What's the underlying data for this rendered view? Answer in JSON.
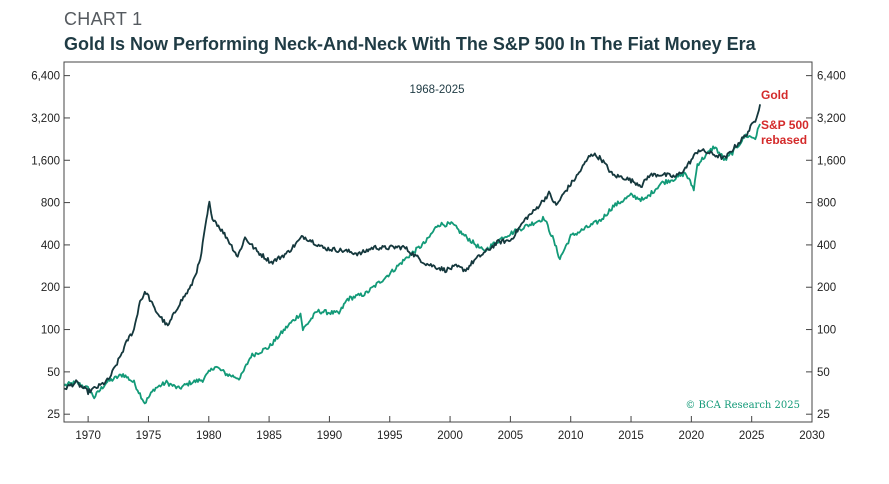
{
  "header": {
    "label": "CHART 1",
    "title": "Gold Is Now Performing Neck-And-Neck With The S&P 500 In The Fiat Money Era"
  },
  "chart_data": {
    "type": "line",
    "scale": "log2",
    "date_range": "1968-2025",
    "copyright": "© BCA Research 2025",
    "xlim": [
      1968,
      2030
    ],
    "ylim": [
      22,
      8000
    ],
    "x_ticks": [
      1970,
      1975,
      1980,
      1985,
      1990,
      1995,
      2000,
      2005,
      2010,
      2015,
      2020,
      2025,
      2030
    ],
    "y_ticks": [
      25,
      50,
      100,
      200,
      400,
      800,
      1600,
      3200,
      6400
    ],
    "y_tick_labels": [
      "25",
      "50",
      "100",
      "200",
      "400",
      "800",
      "1,600",
      "3,200",
      "6,400"
    ],
    "colors": {
      "gold": "#15383d",
      "sp500": "#139a78",
      "legend_label": "#d42a2a",
      "frame": "#444444"
    },
    "series": [
      {
        "name": "Gold",
        "label": "Gold",
        "x": [
          1968,
          1969,
          1970,
          1971,
          1971.7,
          1972.5,
          1973.3,
          1973.8,
          1974.3,
          1974.8,
          1975.5,
          1976.6,
          1977.5,
          1978.5,
          1979.3,
          1979.8,
          1980.05,
          1980.2,
          1980.6,
          1981.5,
          1982.4,
          1983.0,
          1984.0,
          1985.2,
          1986.5,
          1987.8,
          1988.5,
          1989.5,
          1990.5,
          1991.5,
          1992.5,
          1993.7,
          1994.5,
          1995.5,
          1996.2,
          1997.0,
          1998.0,
          1999.6,
          2000.5,
          2001.3,
          2002.0,
          2003.0,
          2004.0,
          2005.0,
          2006.3,
          2007.0,
          2008.2,
          2008.8,
          2009.5,
          2010.5,
          2011.7,
          2012.5,
          2013.5,
          2014.5,
          2015.9,
          2016.5,
          2017.5,
          2018.7,
          2019.5,
          2020.6,
          2021.5,
          2022.8,
          2023.5,
          2024.5,
          2025.3,
          2025.7
        ],
        "values": [
          38,
          42,
          36,
          40,
          44,
          60,
          85,
          100,
          160,
          185,
          140,
          105,
          150,
          200,
          310,
          600,
          800,
          650,
          580,
          450,
          330,
          450,
          360,
          300,
          350,
          460,
          430,
          380,
          370,
          360,
          345,
          385,
          380,
          385,
          385,
          340,
          295,
          265,
          280,
          265,
          310,
          360,
          420,
          430,
          620,
          700,
          930,
          760,
          950,
          1230,
          1790,
          1650,
          1250,
          1200,
          1060,
          1250,
          1270,
          1220,
          1400,
          1900,
          1800,
          1650,
          1950,
          2400,
          3100,
          4000
        ]
      },
      {
        "name": "S&P 500 rebased",
        "label": "S&P 500\nrebased",
        "x": [
          1968,
          1969,
          1970,
          1970.5,
          1971.5,
          1972.9,
          1973.8,
          1974.7,
          1975.5,
          1976.5,
          1977.5,
          1978.5,
          1979.5,
          1980.5,
          1981.5,
          1982.6,
          1983.5,
          1985.0,
          1986.5,
          1987.6,
          1987.8,
          1989.0,
          1990.8,
          1991.5,
          1993.0,
          1995.0,
          1996.5,
          1998.0,
          1999.0,
          2000.2,
          2001.0,
          2001.7,
          2002.8,
          2003.5,
          2004.5,
          2006.0,
          2007.8,
          2008.5,
          2009.1,
          2010.0,
          2011.5,
          2012.5,
          2013.5,
          2015.0,
          2016.1,
          2017.5,
          2018.8,
          2019.5,
          2020.2,
          2020.5,
          2021.9,
          2022.8,
          2023.5,
          2024.5,
          2025.3,
          2025.7
        ],
        "values": [
          40,
          42,
          38,
          33,
          42,
          48,
          42,
          30,
          38,
          42,
          38,
          42,
          44,
          55,
          48,
          45,
          65,
          75,
          105,
          130,
          100,
          135,
          130,
          165,
          180,
          250,
          330,
          420,
          560,
          560,
          480,
          430,
          360,
          400,
          460,
          530,
          620,
          450,
          320,
          460,
          540,
          600,
          750,
          900,
          830,
          1100,
          1200,
          1300,
          1000,
          1500,
          2000,
          1600,
          1850,
          2400,
          2300,
          2900
        ]
      }
    ]
  }
}
